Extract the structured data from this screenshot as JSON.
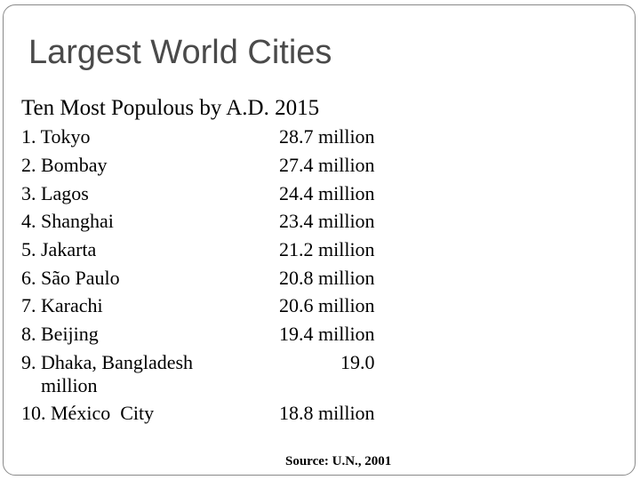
{
  "slide": {
    "title": "Largest World Cities",
    "subtitle": "Ten Most Populous by A.D. 2015",
    "source": "Source: U.N., 2001"
  },
  "rows": [
    {
      "city": "1. Tokyo",
      "population": "28.7 million"
    },
    {
      "city": "2. Bombay",
      "population": "27.4 million"
    },
    {
      "city": "3. Lagos",
      "population": "24.4 million"
    },
    {
      "city": "4. Shanghai",
      "population": "23.4 million"
    },
    {
      "city": "5. Jakarta",
      "population": "21.2 million"
    },
    {
      "city": "6. São Paulo",
      "population": "20.8 million"
    },
    {
      "city": "7. Karachi",
      "population": "20.6 million"
    },
    {
      "city": "8. Beijing",
      "population": "19.4 million"
    },
    {
      "city": "9. Dhaka, Bangladesh",
      "population": "19.0",
      "wrap": "million"
    },
    {
      "city": "10. México  City",
      "population": "18.8 million"
    }
  ]
}
